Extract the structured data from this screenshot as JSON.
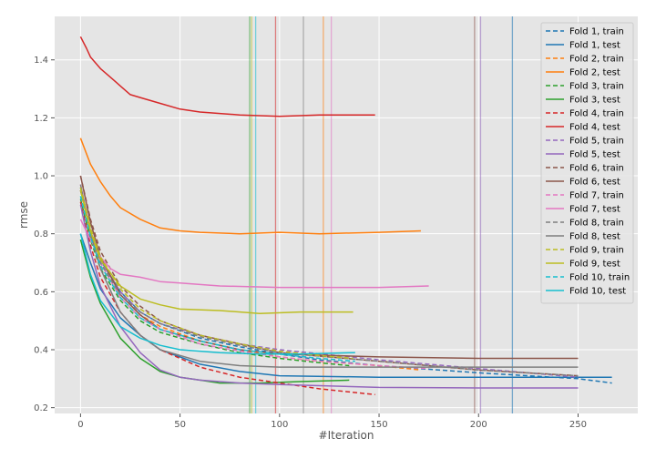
{
  "chart_data": {
    "type": "line",
    "title": "",
    "xlabel": "#Iteration",
    "ylabel": "rmse",
    "xlim": [
      -13,
      280
    ],
    "ylim": [
      0.18,
      1.55
    ],
    "xticks": [
      0,
      50,
      100,
      150,
      200,
      250
    ],
    "yticks": [
      0.2,
      0.4,
      0.6,
      0.8,
      1.0,
      1.2,
      1.4
    ],
    "xtick_labels": [
      "0",
      "50",
      "100",
      "150",
      "200",
      "250"
    ],
    "ytick_labels": [
      "0.2",
      "0.4",
      "0.6",
      "0.8",
      "1.0",
      "1.2",
      "1.4"
    ],
    "grid": true,
    "legend_position": "top-right",
    "series": [
      {
        "name": "Fold 1, train",
        "color": "#1f77b4",
        "style": "dashed",
        "points": [
          [
            0,
            0.96
          ],
          [
            5,
            0.82
          ],
          [
            10,
            0.71
          ],
          [
            20,
            0.6
          ],
          [
            30,
            0.53
          ],
          [
            40,
            0.49
          ],
          [
            60,
            0.44
          ],
          [
            80,
            0.41
          ],
          [
            100,
            0.385
          ],
          [
            120,
            0.365
          ],
          [
            150,
            0.345
          ],
          [
            200,
            0.32
          ],
          [
            250,
            0.3
          ],
          [
            267,
            0.285
          ]
        ]
      },
      {
        "name": "Fold 1, test",
        "color": "#1f77b4",
        "style": "solid",
        "points": [
          [
            0,
            0.8
          ],
          [
            5,
            0.7
          ],
          [
            10,
            0.61
          ],
          [
            20,
            0.51
          ],
          [
            30,
            0.45
          ],
          [
            40,
            0.4
          ],
          [
            60,
            0.35
          ],
          [
            80,
            0.325
          ],
          [
            100,
            0.31
          ],
          [
            150,
            0.305
          ],
          [
            200,
            0.305
          ],
          [
            267,
            0.305
          ]
        ]
      },
      {
        "name": "Fold 2, train",
        "color": "#ff7f0e",
        "style": "dashed",
        "points": [
          [
            0,
            0.95
          ],
          [
            5,
            0.8
          ],
          [
            10,
            0.7
          ],
          [
            20,
            0.59
          ],
          [
            30,
            0.52
          ],
          [
            40,
            0.48
          ],
          [
            60,
            0.43
          ],
          [
            80,
            0.4
          ],
          [
            100,
            0.375
          ],
          [
            120,
            0.36
          ],
          [
            150,
            0.345
          ],
          [
            171,
            0.33
          ]
        ]
      },
      {
        "name": "Fold 2, test",
        "color": "#ff7f0e",
        "style": "solid",
        "points": [
          [
            0,
            1.13
          ],
          [
            5,
            1.04
          ],
          [
            10,
            0.98
          ],
          [
            15,
            0.93
          ],
          [
            20,
            0.89
          ],
          [
            30,
            0.85
          ],
          [
            40,
            0.82
          ],
          [
            50,
            0.81
          ],
          [
            60,
            0.805
          ],
          [
            80,
            0.8
          ],
          [
            100,
            0.805
          ],
          [
            120,
            0.8
          ],
          [
            150,
            0.805
          ],
          [
            171,
            0.81
          ]
        ]
      },
      {
        "name": "Fold 3, train",
        "color": "#2ca02c",
        "style": "dashed",
        "points": [
          [
            0,
            0.92
          ],
          [
            5,
            0.78
          ],
          [
            10,
            0.68
          ],
          [
            20,
            0.57
          ],
          [
            30,
            0.5
          ],
          [
            40,
            0.46
          ],
          [
            60,
            0.42
          ],
          [
            80,
            0.39
          ],
          [
            100,
            0.37
          ],
          [
            120,
            0.355
          ],
          [
            135,
            0.345
          ]
        ]
      },
      {
        "name": "Fold 3, test",
        "color": "#2ca02c",
        "style": "solid",
        "points": [
          [
            0,
            0.78
          ],
          [
            5,
            0.65
          ],
          [
            10,
            0.56
          ],
          [
            20,
            0.44
          ],
          [
            30,
            0.37
          ],
          [
            40,
            0.325
          ],
          [
            50,
            0.305
          ],
          [
            60,
            0.295
          ],
          [
            70,
            0.285
          ],
          [
            90,
            0.285
          ],
          [
            110,
            0.29
          ],
          [
            135,
            0.295
          ]
        ]
      },
      {
        "name": "Fold 4, train",
        "color": "#d62728",
        "style": "dashed",
        "points": [
          [
            0,
            0.91
          ],
          [
            5,
            0.76
          ],
          [
            10,
            0.65
          ],
          [
            20,
            0.53
          ],
          [
            30,
            0.45
          ],
          [
            40,
            0.4
          ],
          [
            60,
            0.34
          ],
          [
            80,
            0.305
          ],
          [
            100,
            0.285
          ],
          [
            120,
            0.265
          ],
          [
            148,
            0.245
          ]
        ]
      },
      {
        "name": "Fold 4, test",
        "color": "#d62728",
        "style": "solid",
        "points": [
          [
            0,
            1.48
          ],
          [
            3,
            1.44
          ],
          [
            5,
            1.41
          ],
          [
            10,
            1.37
          ],
          [
            15,
            1.34
          ],
          [
            20,
            1.31
          ],
          [
            25,
            1.28
          ],
          [
            30,
            1.27
          ],
          [
            40,
            1.25
          ],
          [
            50,
            1.23
          ],
          [
            60,
            1.22
          ],
          [
            70,
            1.215
          ],
          [
            80,
            1.21
          ],
          [
            100,
            1.205
          ],
          [
            120,
            1.21
          ],
          [
            148,
            1.21
          ]
        ]
      },
      {
        "name": "Fold 5, train",
        "color": "#9467bd",
        "style": "dashed",
        "points": [
          [
            0,
            0.95
          ],
          [
            5,
            0.81
          ],
          [
            10,
            0.71
          ],
          [
            20,
            0.6
          ],
          [
            30,
            0.53
          ],
          [
            40,
            0.49
          ],
          [
            60,
            0.45
          ],
          [
            80,
            0.42
          ],
          [
            100,
            0.4
          ],
          [
            150,
            0.365
          ],
          [
            200,
            0.335
          ],
          [
            250,
            0.305
          ]
        ]
      },
      {
        "name": "Fold 5, test",
        "color": "#9467bd",
        "style": "solid",
        "points": [
          [
            0,
            0.9
          ],
          [
            5,
            0.74
          ],
          [
            10,
            0.62
          ],
          [
            20,
            0.48
          ],
          [
            30,
            0.39
          ],
          [
            40,
            0.33
          ],
          [
            50,
            0.305
          ],
          [
            60,
            0.295
          ],
          [
            80,
            0.285
          ],
          [
            100,
            0.28
          ],
          [
            150,
            0.27
          ],
          [
            200,
            0.268
          ],
          [
            250,
            0.268
          ]
        ]
      },
      {
        "name": "Fold 6, train",
        "color": "#8c564b",
        "style": "dashed",
        "points": [
          [
            0,
            1.0
          ],
          [
            5,
            0.85
          ],
          [
            10,
            0.74
          ],
          [
            20,
            0.62
          ],
          [
            30,
            0.55
          ],
          [
            40,
            0.5
          ],
          [
            60,
            0.45
          ],
          [
            80,
            0.42
          ],
          [
            100,
            0.39
          ],
          [
            150,
            0.36
          ],
          [
            200,
            0.33
          ],
          [
            250,
            0.31
          ]
        ]
      },
      {
        "name": "Fold 6, test",
        "color": "#8c564b",
        "style": "solid",
        "points": [
          [
            0,
            1.0
          ],
          [
            5,
            0.84
          ],
          [
            10,
            0.72
          ],
          [
            20,
            0.59
          ],
          [
            30,
            0.52
          ],
          [
            40,
            0.47
          ],
          [
            60,
            0.43
          ],
          [
            80,
            0.4
          ],
          [
            100,
            0.385
          ],
          [
            150,
            0.375
          ],
          [
            200,
            0.37
          ],
          [
            250,
            0.37
          ]
        ]
      },
      {
        "name": "Fold 7, train",
        "color": "#e377c2",
        "style": "dashed",
        "points": [
          [
            0,
            0.97
          ],
          [
            5,
            0.81
          ],
          [
            10,
            0.7
          ],
          [
            20,
            0.58
          ],
          [
            30,
            0.51
          ],
          [
            40,
            0.47
          ],
          [
            60,
            0.42
          ],
          [
            80,
            0.395
          ],
          [
            100,
            0.375
          ],
          [
            120,
            0.36
          ],
          [
            150,
            0.345
          ],
          [
            175,
            0.335
          ]
        ]
      },
      {
        "name": "Fold 7, test",
        "color": "#e377c2",
        "style": "solid",
        "points": [
          [
            0,
            0.85
          ],
          [
            5,
            0.78
          ],
          [
            10,
            0.72
          ],
          [
            15,
            0.68
          ],
          [
            20,
            0.66
          ],
          [
            30,
            0.65
          ],
          [
            40,
            0.635
          ],
          [
            50,
            0.63
          ],
          [
            70,
            0.62
          ],
          [
            100,
            0.615
          ],
          [
            130,
            0.615
          ],
          [
            150,
            0.615
          ],
          [
            175,
            0.62
          ]
        ]
      },
      {
        "name": "Fold 8, train",
        "color": "#7f7f7f",
        "style": "dashed",
        "points": [
          [
            0,
            0.95
          ],
          [
            5,
            0.8
          ],
          [
            10,
            0.7
          ],
          [
            20,
            0.59
          ],
          [
            30,
            0.53
          ],
          [
            40,
            0.49
          ],
          [
            60,
            0.445
          ],
          [
            80,
            0.415
          ],
          [
            100,
            0.39
          ],
          [
            150,
            0.36
          ],
          [
            200,
            0.33
          ],
          [
            250,
            0.31
          ]
        ]
      },
      {
        "name": "Fold 8, test",
        "color": "#7f7f7f",
        "style": "solid",
        "points": [
          [
            0,
            0.97
          ],
          [
            5,
            0.8
          ],
          [
            10,
            0.68
          ],
          [
            20,
            0.53
          ],
          [
            30,
            0.45
          ],
          [
            40,
            0.4
          ],
          [
            60,
            0.36
          ],
          [
            80,
            0.345
          ],
          [
            100,
            0.34
          ],
          [
            150,
            0.34
          ],
          [
            200,
            0.34
          ],
          [
            250,
            0.34
          ]
        ]
      },
      {
        "name": "Fold 9, train",
        "color": "#bcbd22",
        "style": "dashed",
        "points": [
          [
            0,
            0.96
          ],
          [
            5,
            0.82
          ],
          [
            10,
            0.72
          ],
          [
            20,
            0.61
          ],
          [
            30,
            0.54
          ],
          [
            40,
            0.5
          ],
          [
            60,
            0.45
          ],
          [
            80,
            0.42
          ],
          [
            100,
            0.395
          ],
          [
            120,
            0.38
          ],
          [
            137,
            0.37
          ]
        ]
      },
      {
        "name": "Fold 9, test",
        "color": "#bcbd22",
        "style": "solid",
        "points": [
          [
            0,
            0.95
          ],
          [
            5,
            0.81
          ],
          [
            10,
            0.71
          ],
          [
            20,
            0.62
          ],
          [
            30,
            0.575
          ],
          [
            40,
            0.555
          ],
          [
            50,
            0.54
          ],
          [
            70,
            0.535
          ],
          [
            90,
            0.525
          ],
          [
            110,
            0.53
          ],
          [
            137,
            0.53
          ]
        ]
      },
      {
        "name": "Fold 10, train",
        "color": "#17becf",
        "style": "dashed",
        "points": [
          [
            0,
            0.93
          ],
          [
            5,
            0.79
          ],
          [
            10,
            0.69
          ],
          [
            20,
            0.58
          ],
          [
            30,
            0.51
          ],
          [
            40,
            0.47
          ],
          [
            60,
            0.43
          ],
          [
            80,
            0.4
          ],
          [
            100,
            0.385
          ],
          [
            120,
            0.37
          ],
          [
            138,
            0.36
          ]
        ]
      },
      {
        "name": "Fold 10, test",
        "color": "#17becf",
        "style": "solid",
        "points": [
          [
            0,
            0.8
          ],
          [
            5,
            0.66
          ],
          [
            10,
            0.57
          ],
          [
            20,
            0.48
          ],
          [
            30,
            0.44
          ],
          [
            40,
            0.415
          ],
          [
            50,
            0.4
          ],
          [
            70,
            0.39
          ],
          [
            90,
            0.385
          ],
          [
            110,
            0.385
          ],
          [
            138,
            0.39
          ]
        ]
      }
    ],
    "vlines": [
      {
        "x": 85,
        "color": "#2ca02c"
      },
      {
        "x": 86,
        "color": "#bcbd22"
      },
      {
        "x": 88,
        "color": "#17becf"
      },
      {
        "x": 98,
        "color": "#d62728"
      },
      {
        "x": 112,
        "color": "#7f7f7f"
      },
      {
        "x": 122,
        "color": "#ff7f0e"
      },
      {
        "x": 126,
        "color": "#e377c2"
      },
      {
        "x": 198,
        "color": "#8c564b"
      },
      {
        "x": 201,
        "color": "#9467bd"
      },
      {
        "x": 217,
        "color": "#1f77b4"
      }
    ]
  }
}
